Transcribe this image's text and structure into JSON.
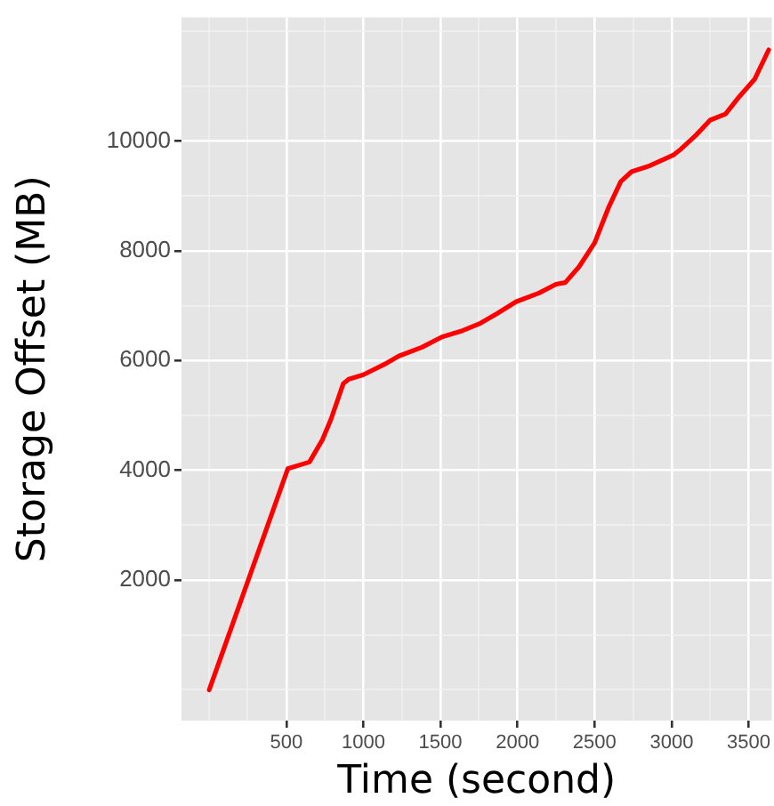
{
  "chart_data": {
    "type": "line",
    "xlabel": "Time (second)",
    "ylabel": "Storage Offset (MB)",
    "x": [
      0,
      510,
      650,
      735,
      790,
      870,
      905,
      1000,
      1150,
      1230,
      1380,
      1510,
      1640,
      1760,
      1870,
      1990,
      2140,
      2250,
      2310,
      2400,
      2500,
      2590,
      2670,
      2740,
      2860,
      3010,
      3060,
      3160,
      3250,
      3350,
      3440,
      3540,
      3630
    ],
    "series": [
      {
        "color": "#ff0000",
        "values": [
          0,
          4030,
          4150,
          4560,
          4930,
          5580,
          5660,
          5740,
          5950,
          6080,
          6240,
          6430,
          6540,
          6680,
          6860,
          7070,
          7230,
          7390,
          7420,
          7710,
          8140,
          8780,
          9260,
          9440,
          9550,
          9740,
          9850,
          10110,
          10380,
          10490,
          10810,
          11130,
          11660
        ]
      }
    ],
    "xlim": [
      -180,
      3650
    ],
    "ylim": [
      -560,
      12250
    ],
    "xticks": [
      {
        "value": 0,
        "label": null
      },
      {
        "value": 250,
        "label": null
      },
      500,
      {
        "value": 750,
        "label": null
      },
      1000,
      {
        "value": 1250,
        "label": null
      },
      1500,
      {
        "value": 1750,
        "label": null
      },
      2000,
      {
        "value": 2250,
        "label": null
      },
      2500,
      {
        "value": 2750,
        "label": null
      },
      3000,
      {
        "value": 3250,
        "label": null
      },
      3500
    ],
    "yticks": [
      {
        "value": 0,
        "label": null
      },
      {
        "value": 1000,
        "label": null
      },
      2000,
      {
        "value": 3000,
        "label": null
      },
      4000,
      {
        "value": 5000,
        "label": null
      },
      6000,
      {
        "value": 7000,
        "label": null
      },
      8000,
      {
        "value": 9000,
        "label": null
      },
      10000,
      {
        "value": 11000,
        "label": null
      },
      {
        "value": 12000,
        "label": null
      }
    ],
    "grid": true,
    "marker": "none",
    "line_style": "solid"
  }
}
